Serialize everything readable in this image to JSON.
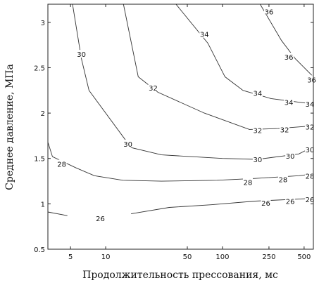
{
  "chart_data": {
    "type": "contour",
    "xlabel": "Продолжительность прессования, мс",
    "ylabel": "Среднее давление, МПа",
    "x_scale": "log",
    "xlim": [
      3.2,
      600
    ],
    "ylim": [
      0.5,
      3.2
    ],
    "x_ticks": [
      5,
      10,
      50,
      100,
      250,
      500
    ],
    "x_tick_labels": [
      "5",
      "10",
      "50",
      "100",
      "250",
      "500"
    ],
    "y_ticks": [
      0.5,
      1,
      1.5,
      2,
      2.5,
      3
    ],
    "y_tick_labels": [
      "0.5",
      "1",
      "1.5",
      "2",
      "2.5",
      "3"
    ],
    "grid": false,
    "contours": [
      {
        "level": 26,
        "label": "26",
        "segments": [
          [
            [
              3.2,
              0.91
            ],
            [
              4.7,
              0.87
            ]
          ],
          [
            [
              16.5,
              0.89
            ],
            [
              35,
              0.96
            ],
            [
              80,
              0.99
            ],
            [
              190,
              1.03
            ],
            [
              600,
              1.06
            ]
          ]
        ],
        "labels": [
          {
            "text": "26",
            "x": 9.0,
            "y": 0.84
          },
          {
            "text": "26",
            "x": 235,
            "y": 1.01
          },
          {
            "text": "26",
            "x": 380,
            "y": 1.03
          },
          {
            "text": "26",
            "x": 560,
            "y": 1.05
          }
        ]
      },
      {
        "level": 28,
        "label": "28",
        "segments": [
          [
            [
              3.2,
              1.68
            ],
            [
              3.5,
              1.52
            ],
            [
              5.5,
              1.4
            ],
            [
              8,
              1.31
            ],
            [
              14,
              1.26
            ],
            [
              30,
              1.25
            ],
            [
              90,
              1.26
            ],
            [
              190,
              1.28
            ],
            [
              450,
              1.31
            ],
            [
              600,
              1.33
            ]
          ]
        ],
        "labels": [
          {
            "text": "28",
            "x": 4.2,
            "y": 1.44
          },
          {
            "text": "28",
            "x": 165,
            "y": 1.24
          },
          {
            "text": "28",
            "x": 330,
            "y": 1.27
          },
          {
            "text": "28",
            "x": 560,
            "y": 1.31
          }
        ]
      },
      {
        "level": 30,
        "label": "30",
        "segments": [
          [
            [
              5.2,
              3.2
            ],
            [
              6.2,
              2.6
            ],
            [
              7.2,
              2.25
            ],
            [
              16.5,
              1.62
            ],
            [
              30,
              1.54
            ],
            [
              100,
              1.5
            ],
            [
              200,
              1.49
            ],
            [
              450,
              1.55
            ],
            [
              600,
              1.63
            ]
          ]
        ],
        "labels": [
          {
            "text": "30",
            "x": 6.2,
            "y": 2.65
          },
          {
            "text": "30",
            "x": 15.5,
            "y": 1.66
          },
          {
            "text": "30",
            "x": 200,
            "y": 1.49
          },
          {
            "text": "30",
            "x": 380,
            "y": 1.53
          },
          {
            "text": "30",
            "x": 560,
            "y": 1.6
          }
        ]
      },
      {
        "level": 32,
        "label": "32",
        "segments": [
          [
            [
              14.2,
              3.2
            ],
            [
              19,
              2.4
            ],
            [
              28,
              2.23
            ],
            [
              70,
              2.0
            ],
            [
              170,
              1.82
            ],
            [
              300,
              1.83
            ],
            [
              600,
              1.86
            ]
          ]
        ],
        "labels": [
          {
            "text": "32",
            "x": 25.5,
            "y": 2.28
          },
          {
            "text": "32",
            "x": 200,
            "y": 1.81
          },
          {
            "text": "32",
            "x": 340,
            "y": 1.82
          },
          {
            "text": "32",
            "x": 560,
            "y": 1.85
          }
        ]
      },
      {
        "level": 34,
        "label": "34",
        "segments": [
          [
            [
              40,
              3.2
            ],
            [
              75,
              2.77
            ],
            [
              105,
              2.4
            ],
            [
              150,
              2.25
            ],
            [
              260,
              2.16
            ],
            [
              450,
              2.12
            ],
            [
              600,
              2.1
            ]
          ]
        ],
        "labels": [
          {
            "text": "34",
            "x": 70,
            "y": 2.87
          },
          {
            "text": "34",
            "x": 200,
            "y": 2.22
          },
          {
            "text": "34",
            "x": 370,
            "y": 2.12
          },
          {
            "text": "34",
            "x": 560,
            "y": 2.1
          }
        ]
      },
      {
        "level": 36,
        "label": "36",
        "segments": [
          [
            [
              210,
              3.2
            ],
            [
              320,
              2.8
            ],
            [
              420,
              2.6
            ],
            [
              600,
              2.4
            ]
          ]
        ],
        "labels": [
          {
            "text": "36",
            "x": 250,
            "y": 3.12
          },
          {
            "text": "36",
            "x": 370,
            "y": 2.62
          },
          {
            "text": "36",
            "x": 580,
            "y": 2.37
          }
        ]
      }
    ]
  }
}
